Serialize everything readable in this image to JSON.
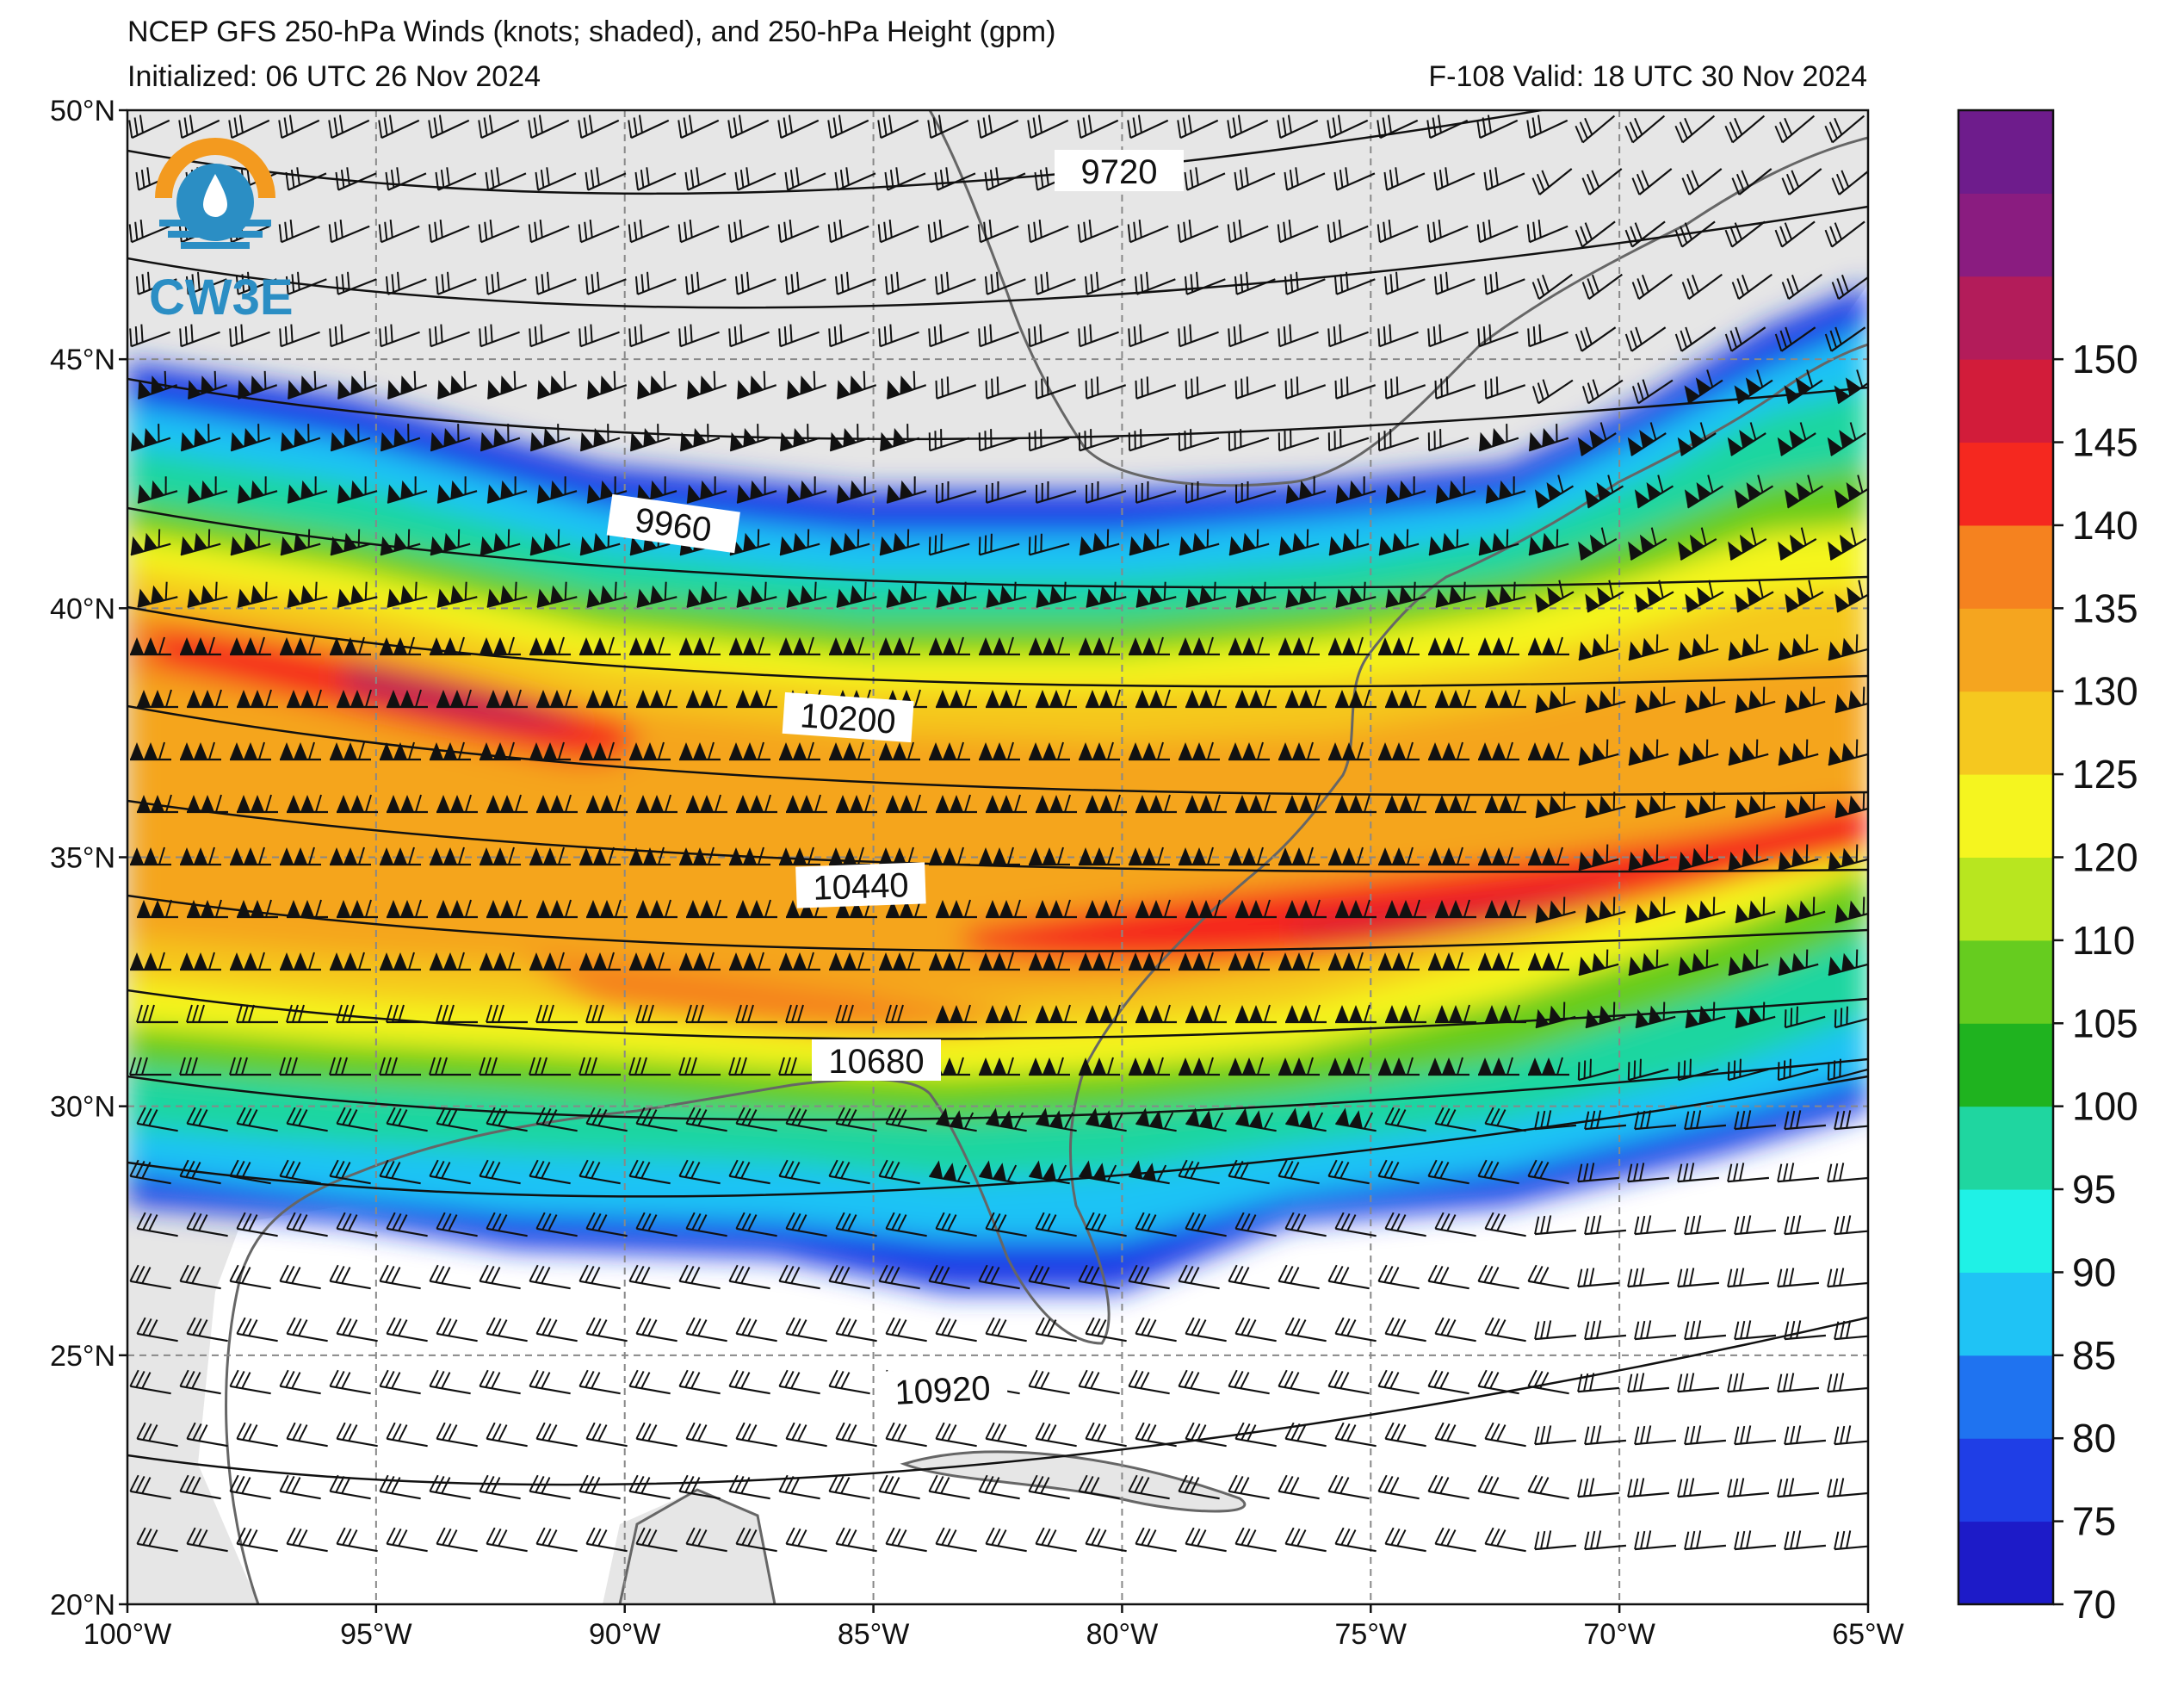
{
  "header": {
    "title": "NCEP GFS 250-hPa Winds (knots; shaded), and 250-hPa Height (gpm)",
    "initialized": "Initialized: 06 UTC 26 Nov 2024",
    "valid": "F-108  Valid: 18 UTC 30 Nov 2024"
  },
  "logo": {
    "text": "CW3E",
    "colors": {
      "sun": "#f39a1f",
      "waves": "#2b8ec4"
    }
  },
  "map": {
    "lon_range": [
      -100,
      -65
    ],
    "lat_range": [
      20,
      50
    ],
    "lat_ticks": [
      "20°N",
      "25°N",
      "30°N",
      "35°N",
      "40°N",
      "45°N",
      "50°N"
    ],
    "lon_ticks": [
      "100°W",
      "95°W",
      "90°W",
      "85°W",
      "80°W",
      "75°W",
      "70°W",
      "65°W"
    ],
    "grid": "dashed"
  },
  "contours": {
    "units": "gpm",
    "labels": [
      "9720",
      "9960",
      "10200",
      "10440",
      "10680",
      "10920"
    ]
  },
  "colorbar": {
    "ticks": [
      "70",
      "75",
      "80",
      "85",
      "90",
      "95",
      "100",
      "105",
      "110",
      "120",
      "125",
      "130",
      "135",
      "140",
      "145",
      "150"
    ],
    "colors": [
      "#1d1bc8",
      "#1f3ee6",
      "#1f73f0",
      "#1fc3f5",
      "#1ff1e6",
      "#1fd6a0",
      "#1fb31f",
      "#66cc1f",
      "#b8e61f",
      "#f5f51f",
      "#f5c81f",
      "#f5a51f",
      "#f5821f",
      "#f5281f",
      "#d21c3a",
      "#b31c5a",
      "#8a1c80",
      "#6e1c8c"
    ]
  }
}
